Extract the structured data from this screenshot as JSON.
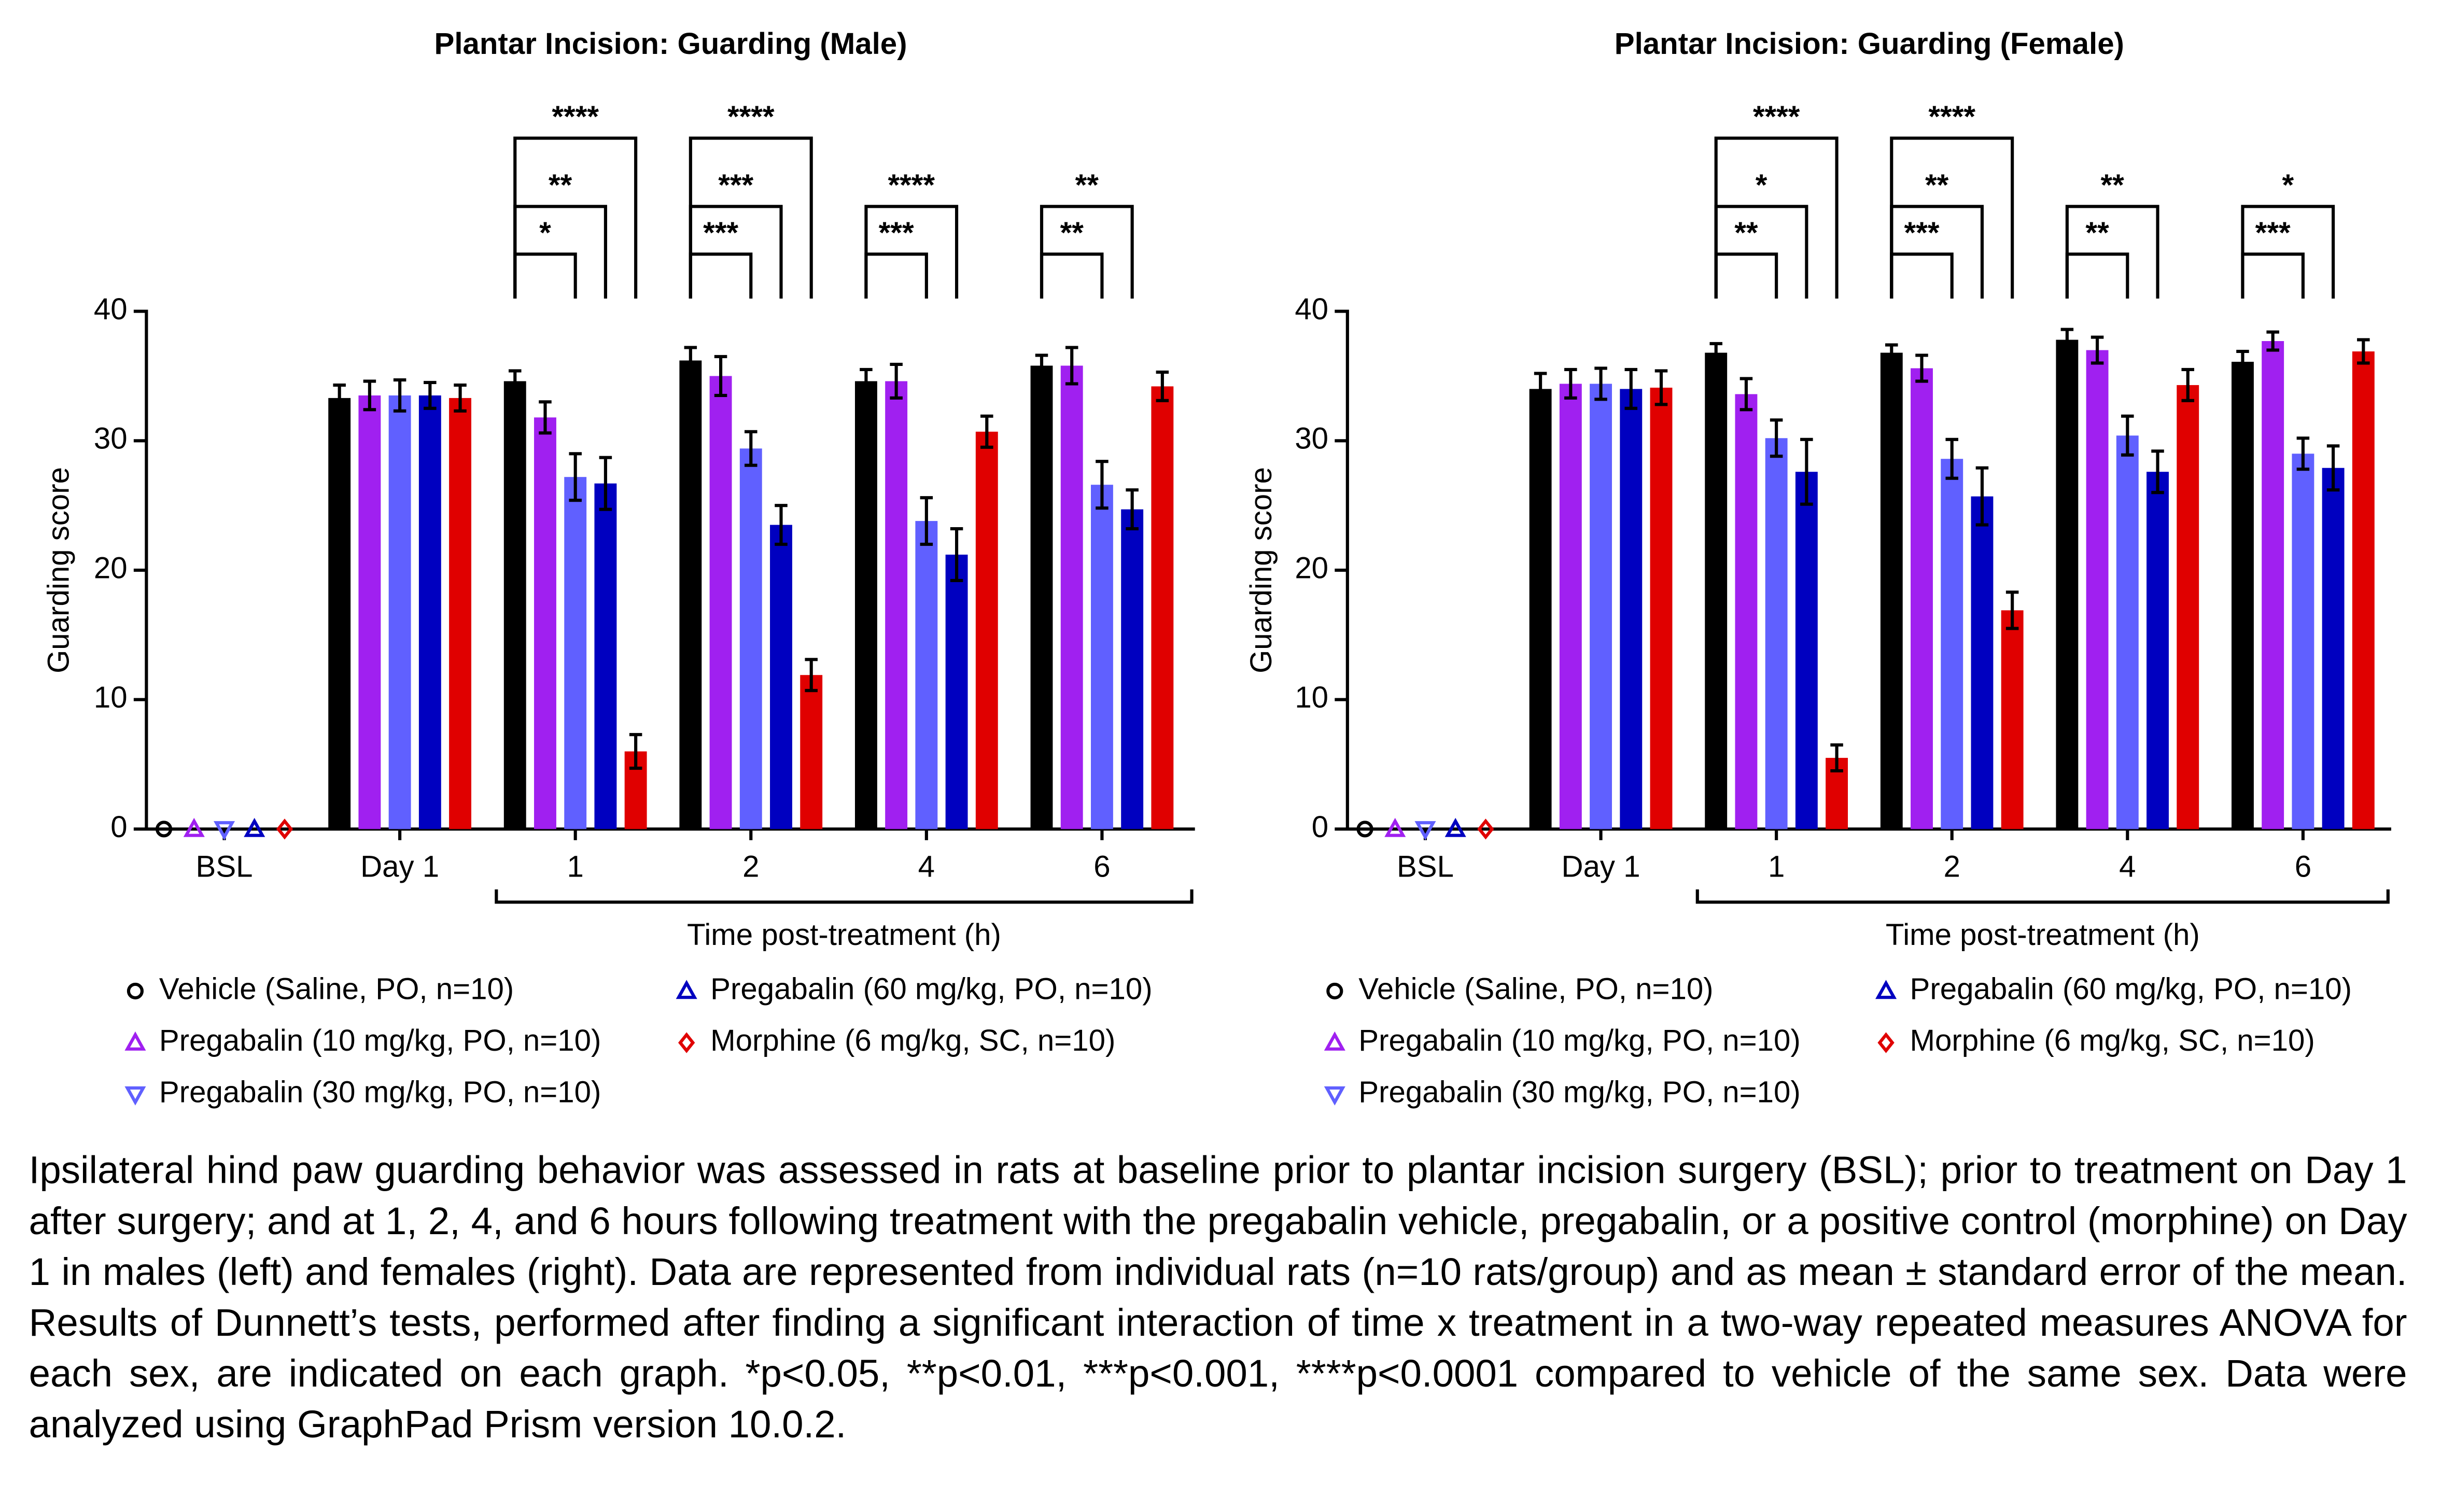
{
  "chart_data": [
    {
      "type": "bar",
      "title": "Plantar Incision: Guarding (Male)",
      "ylabel": "Guarding score",
      "xlabel": "Time post-treatment (h)",
      "categories": [
        "BSL",
        "Day 1",
        "1",
        "2",
        "4",
        "6"
      ],
      "ylim": [
        0,
        40
      ],
      "yticks": [
        0,
        10,
        20,
        30,
        40
      ],
      "series": [
        {
          "name": "Vehicle (Saline, PO, n=10)",
          "color": "#000000",
          "marker": "circle",
          "values": [
            0,
            33.3,
            34.6,
            36.2,
            34.6,
            35.8
          ],
          "errors": [
            0,
            1.0,
            0.8,
            1.0,
            0.9,
            0.8
          ]
        },
        {
          "name": "Pregabalin (10 mg/kg, PO, n=10)",
          "color": "#a020f0",
          "marker": "triangle-up",
          "values": [
            0,
            33.5,
            31.8,
            35.0,
            34.6,
            35.8
          ],
          "errors": [
            0,
            1.1,
            1.2,
            1.5,
            1.3,
            1.4
          ]
        },
        {
          "name": "Pregabalin (30 mg/kg, PO, n=10)",
          "color": "#6060ff",
          "marker": "triangle-down",
          "values": [
            0,
            33.5,
            27.2,
            29.4,
            23.8,
            26.6
          ],
          "errors": [
            0,
            1.2,
            1.8,
            1.3,
            1.8,
            1.8
          ]
        },
        {
          "name": "Pregabalin (60 mg/kg, PO, n=10)",
          "color": "#0000c0",
          "marker": "triangle-up",
          "values": [
            0,
            33.5,
            26.7,
            23.5,
            21.2,
            24.7
          ],
          "errors": [
            0,
            1.0,
            2.0,
            1.5,
            2.0,
            1.5
          ]
        },
        {
          "name": "Morphine (6 mg/kg, SC, n=10)",
          "color": "#e00000",
          "marker": "diamond",
          "values": [
            0,
            33.3,
            6.0,
            11.9,
            30.7,
            34.2
          ],
          "errors": [
            0,
            1.0,
            1.3,
            1.2,
            1.2,
            1.1
          ]
        }
      ],
      "annotations": [
        {
          "category": 2,
          "series": 2,
          "label": "*"
        },
        {
          "category": 2,
          "series": 3,
          "label": "**"
        },
        {
          "category": 2,
          "series": 4,
          "label": "****"
        },
        {
          "category": 3,
          "series": 2,
          "label": "***"
        },
        {
          "category": 3,
          "series": 3,
          "label": "***"
        },
        {
          "category": 3,
          "series": 4,
          "label": "****"
        },
        {
          "category": 4,
          "series": 2,
          "label": "***"
        },
        {
          "category": 4,
          "series": 3,
          "label": "****"
        },
        {
          "category": 5,
          "series": 2,
          "label": "**"
        },
        {
          "category": 5,
          "series": 3,
          "label": "**"
        }
      ]
    },
    {
      "type": "bar",
      "title": "Plantar Incision: Guarding (Female)",
      "ylabel": "Guarding score",
      "xlabel": "Time post-treatment (h)",
      "categories": [
        "BSL",
        "Day 1",
        "1",
        "2",
        "4",
        "6"
      ],
      "ylim": [
        0,
        40
      ],
      "yticks": [
        0,
        10,
        20,
        30,
        40
      ],
      "series": [
        {
          "name": "Vehicle (Saline, PO, n=10)",
          "color": "#000000",
          "marker": "circle",
          "values": [
            0,
            34.0,
            36.8,
            36.8,
            37.8,
            36.1
          ],
          "errors": [
            0,
            1.2,
            0.7,
            0.6,
            0.8,
            0.8
          ]
        },
        {
          "name": "Pregabalin (10 mg/kg, PO, n=10)",
          "color": "#a020f0",
          "marker": "triangle-up",
          "values": [
            0,
            34.4,
            33.6,
            35.6,
            37.0,
            37.7
          ],
          "errors": [
            0,
            1.1,
            1.2,
            1.0,
            1.0,
            0.7
          ]
        },
        {
          "name": "Pregabalin (30 mg/kg, PO, n=10)",
          "color": "#6060ff",
          "marker": "triangle-down",
          "values": [
            0,
            34.4,
            30.2,
            28.6,
            30.4,
            29.0
          ],
          "errors": [
            0,
            1.2,
            1.4,
            1.5,
            1.5,
            1.2
          ]
        },
        {
          "name": "Pregabalin (60 mg/kg, PO, n=10)",
          "color": "#0000c0",
          "marker": "triangle-up",
          "values": [
            0,
            34.0,
            27.6,
            25.7,
            27.6,
            27.9
          ],
          "errors": [
            0,
            1.5,
            2.5,
            2.2,
            1.6,
            1.7
          ]
        },
        {
          "name": "Morphine (6 mg/kg, SC, n=10)",
          "color": "#e00000",
          "marker": "diamond",
          "values": [
            0,
            34.1,
            5.5,
            16.9,
            34.3,
            36.9
          ],
          "errors": [
            0,
            1.3,
            1.0,
            1.4,
            1.2,
            0.9
          ]
        }
      ],
      "annotations": [
        {
          "category": 2,
          "series": 2,
          "label": "**"
        },
        {
          "category": 2,
          "series": 3,
          "label": "*"
        },
        {
          "category": 2,
          "series": 4,
          "label": "****"
        },
        {
          "category": 3,
          "series": 2,
          "label": "***"
        },
        {
          "category": 3,
          "series": 3,
          "label": "**"
        },
        {
          "category": 3,
          "series": 4,
          "label": "****"
        },
        {
          "category": 4,
          "series": 2,
          "label": "**"
        },
        {
          "category": 4,
          "series": 3,
          "label": "**"
        },
        {
          "category": 5,
          "series": 2,
          "label": "***"
        },
        {
          "category": 5,
          "series": 3,
          "label": "*"
        }
      ]
    }
  ],
  "caption": "Ipsilateral hind paw guarding behavior was assessed in rats at baseline prior to plantar incision surgery (BSL); prior to treatment on Day 1 after surgery; and at 1, 2, 4, and 6 hours following treatment with the pregabalin vehicle, pregabalin, or a positive control (morphine) on Day 1 in males (left) and females (right). Data are represented from individual rats (n=10 rats/group) and as mean ± standard error of the mean. Results of Dunnett’s tests, performed after finding a significant interaction of time x treatment in a two-way repeated measures ANOVA for each sex, are indicated on each graph. *p<0.05, **p<0.01, ***p<0.001, ****p<0.0001 compared to vehicle of the same sex. Data were analyzed using GraphPad Prism version 10.0.2."
}
